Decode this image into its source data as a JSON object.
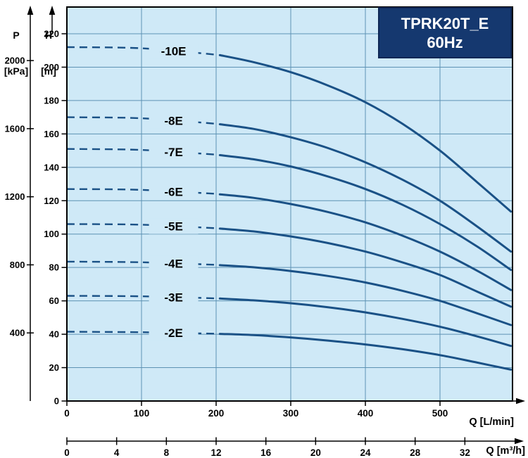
{
  "title_box": {
    "line1": "TPRK20T_E",
    "line2": "60Hz"
  },
  "axis_headers": {
    "pressure_top": "P",
    "pressure_unit": "[kPa]",
    "head_top": "H",
    "head_unit": "[m]"
  },
  "colors": {
    "plot_bg": "#cfe9f7",
    "grid": "#5d92b4",
    "curve": "#1a5186",
    "box_bg": "#15386f",
    "box_border": "#0d2654",
    "axis": "#000000",
    "label_text": "#000000"
  },
  "chart_data": {
    "type": "line",
    "title": "TPRK20T_E 60Hz",
    "x_axis": {
      "label": "Q [L/min]",
      "ticks": [
        0,
        100,
        200,
        300,
        400,
        500
      ],
      "max": 597
    },
    "x_axis_secondary": {
      "label": "Q [m³/h]",
      "ticks": [
        0,
        4,
        8,
        12,
        16,
        20,
        24,
        28,
        32
      ],
      "lmin_per_m3h": 16.6667
    },
    "y_axis": {
      "label": "H [m]",
      "ticks": [
        0,
        20,
        40,
        60,
        80,
        100,
        120,
        140,
        160,
        180,
        200,
        220
      ],
      "max": 236
    },
    "y_axis_secondary": {
      "label": "P [kPa]",
      "ticks": [
        400,
        800,
        1200,
        1600,
        2000
      ],
      "kpa_per_m": 9.80665
    },
    "legend_position": "none",
    "grid": true,
    "series": [
      {
        "name": "-10E",
        "label_q": 143,
        "dashed": [
          [
            0,
            212
          ],
          [
            100,
            211.3
          ],
          [
            200,
            207.5
          ]
        ],
        "solid": [
          [
            205,
            207.2
          ],
          [
            250,
            203
          ],
          [
            300,
            197
          ],
          [
            350,
            189
          ],
          [
            400,
            179
          ],
          [
            450,
            166
          ],
          [
            500,
            150
          ],
          [
            550,
            131
          ],
          [
            595,
            113.5
          ]
        ]
      },
      {
        "name": "-8E",
        "label_q": 143,
        "dashed": [
          [
            0,
            170
          ],
          [
            100,
            169.4
          ],
          [
            200,
            166.1
          ]
        ],
        "solid": [
          [
            205,
            165.8
          ],
          [
            250,
            163
          ],
          [
            300,
            158
          ],
          [
            350,
            151.5
          ],
          [
            400,
            143
          ],
          [
            450,
            132.5
          ],
          [
            500,
            120
          ],
          [
            550,
            104.5
          ],
          [
            595,
            89.5
          ]
        ]
      },
      {
        "name": "-7E",
        "label_q": 143,
        "dashed": [
          [
            0,
            151
          ],
          [
            100,
            150.4
          ],
          [
            200,
            147.6
          ]
        ],
        "solid": [
          [
            205,
            147.3
          ],
          [
            250,
            144.8
          ],
          [
            300,
            140.5
          ],
          [
            350,
            134.5
          ],
          [
            400,
            127
          ],
          [
            450,
            117.5
          ],
          [
            500,
            106
          ],
          [
            550,
            92.5
          ],
          [
            595,
            78.5
          ]
        ]
      },
      {
        "name": "-6E",
        "label_q": 143,
        "dashed": [
          [
            0,
            127
          ],
          [
            100,
            126.5
          ],
          [
            200,
            124.1
          ]
        ],
        "solid": [
          [
            205,
            123.8
          ],
          [
            250,
            121.7
          ],
          [
            300,
            118
          ],
          [
            350,
            113.2
          ],
          [
            400,
            107
          ],
          [
            450,
            99
          ],
          [
            500,
            89.5
          ],
          [
            550,
            78
          ],
          [
            595,
            66.5
          ]
        ]
      },
      {
        "name": "-5E",
        "label_q": 143,
        "dashed": [
          [
            0,
            106
          ],
          [
            100,
            105.6
          ],
          [
            200,
            103.5
          ]
        ],
        "solid": [
          [
            205,
            103.3
          ],
          [
            250,
            101.6
          ],
          [
            300,
            98.6
          ],
          [
            350,
            94.6
          ],
          [
            400,
            89.5
          ],
          [
            450,
            83
          ],
          [
            500,
            75.5
          ],
          [
            550,
            65.5
          ],
          [
            595,
            56.5
          ]
        ]
      },
      {
        "name": "-4E",
        "label_q": 143,
        "dashed": [
          [
            0,
            83.5
          ],
          [
            100,
            83.1
          ],
          [
            200,
            81.6
          ]
        ],
        "solid": [
          [
            205,
            81.4
          ],
          [
            250,
            80.1
          ],
          [
            300,
            77.9
          ],
          [
            350,
            74.9
          ],
          [
            400,
            71
          ],
          [
            450,
            66
          ],
          [
            500,
            60
          ],
          [
            550,
            52.5
          ],
          [
            595,
            45.5
          ]
        ]
      },
      {
        "name": "-3E",
        "label_q": 143,
        "dashed": [
          [
            0,
            63
          ],
          [
            100,
            62.7
          ],
          [
            200,
            61.5
          ]
        ],
        "solid": [
          [
            205,
            61.4
          ],
          [
            250,
            60.3
          ],
          [
            300,
            58.6
          ],
          [
            350,
            56.2
          ],
          [
            400,
            53.1
          ],
          [
            450,
            49.2
          ],
          [
            500,
            44.5
          ],
          [
            550,
            38.7
          ],
          [
            595,
            33
          ]
        ]
      },
      {
        "name": "-2E",
        "label_q": 143,
        "dashed": [
          [
            0,
            41.5
          ],
          [
            100,
            41.2
          ],
          [
            200,
            40.3
          ]
        ],
        "solid": [
          [
            205,
            40.2
          ],
          [
            250,
            39.5
          ],
          [
            300,
            38.1
          ],
          [
            350,
            36.2
          ],
          [
            400,
            33.9
          ],
          [
            450,
            31
          ],
          [
            500,
            27.5
          ],
          [
            550,
            23
          ],
          [
            595,
            18.8
          ]
        ]
      }
    ]
  }
}
